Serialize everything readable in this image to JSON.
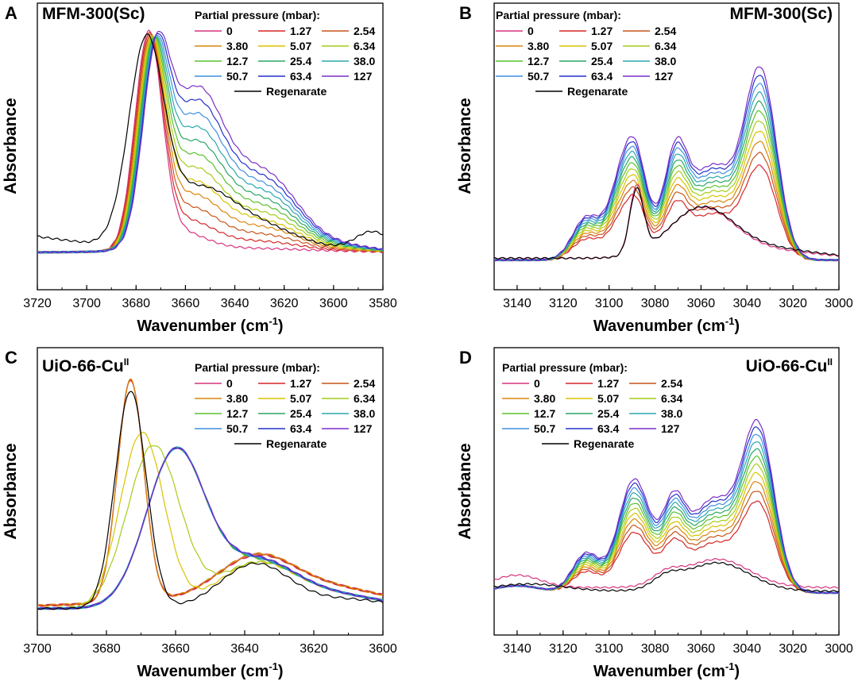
{
  "colors": {
    "0": "#d6337f",
    "1.27": "#d62728",
    "2.54": "#c7541a",
    "3.80": "#d8860c",
    "5.07": "#d9c300",
    "6.34": "#a6cc1a",
    "12.7": "#59c22c",
    "25.4": "#2aa566",
    "38.0": "#2aa7b0",
    "50.7": "#3f8fe0",
    "63.4": "#2430c8",
    "127": "#7a2fc8",
    "Regenarate": "#000000"
  },
  "chart_data": [
    {
      "type": "line",
      "panel_label": "A",
      "title": "MFM-300(Sc)",
      "xlabel": "Wavenumber (cm-1)",
      "ylabel": "Absorbance",
      "xlim": [
        3720,
        3580
      ],
      "xticks": [
        3720,
        3700,
        3680,
        3660,
        3640,
        3620,
        3600,
        3580
      ],
      "legend_title": "Partial pressure (mbar):",
      "legend_position": "top-right",
      "legend": [
        "0",
        "1.27",
        "2.54",
        "3.80",
        "5.07",
        "6.34",
        "12.7",
        "25.4",
        "38.0",
        "50.7",
        "63.4",
        "127",
        "Regenarate"
      ],
      "ylim": [
        0,
        1
      ],
      "series_meta": {
        "peak1_x": 3675,
        "peak2_x": 3655,
        "note": "relative absorbance (no y-axis units shown)"
      }
    },
    {
      "type": "line",
      "panel_label": "B",
      "title": "MFM-300(Sc)",
      "xlabel": "Wavenumber (cm-1)",
      "ylabel": "Absorbance",
      "xlim": [
        3150,
        3000
      ],
      "xticks": [
        3140,
        3120,
        3100,
        3080,
        3060,
        3040,
        3020,
        3000
      ],
      "legend_title": "Partial pressure (mbar):",
      "legend_position": "top-left",
      "legend": [
        "0",
        "1.27",
        "2.54",
        "3.80",
        "5.07",
        "6.34",
        "12.7",
        "25.4",
        "38.0",
        "50.7",
        "63.4",
        "127",
        "Regenarate"
      ],
      "ylim": [
        0,
        1
      ]
    },
    {
      "type": "line",
      "panel_label": "C",
      "title": "UiO-66-CuII",
      "xlabel": "Wavenumber (cm-1)",
      "ylabel": "Absorbance",
      "xlim": [
        3700,
        3600
      ],
      "xticks": [
        3700,
        3680,
        3660,
        3640,
        3620,
        3600
      ],
      "legend_title": "Partial pressure (mbar):",
      "legend_position": "top-right",
      "legend": [
        "0",
        "1.27",
        "2.54",
        "3.80",
        "5.07",
        "6.34",
        "12.7",
        "25.4",
        "38.0",
        "50.7",
        "63.4",
        "127",
        "Regenarate"
      ],
      "ylim": [
        0,
        1
      ]
    },
    {
      "type": "line",
      "panel_label": "D",
      "title": "UiO-66-CuII",
      "xlabel": "Wavenumber (cm-1)",
      "ylabel": "Absorbance",
      "xlim": [
        3150,
        3000
      ],
      "xticks": [
        3140,
        3120,
        3100,
        3080,
        3060,
        3040,
        3020,
        3000
      ],
      "legend_title": "Partial pressure (mbar):",
      "legend_position": "top-left",
      "legend": [
        "0",
        "1.27",
        "2.54",
        "3.80",
        "5.07",
        "6.34",
        "12.7",
        "25.4",
        "38.0",
        "50.7",
        "63.4",
        "127",
        "Regenarate"
      ],
      "ylim": [
        0,
        1
      ]
    }
  ]
}
